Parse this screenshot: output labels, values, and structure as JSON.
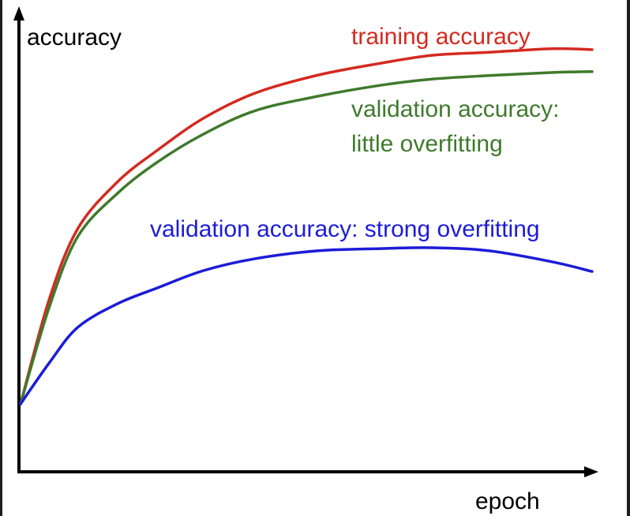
{
  "chart_data": {
    "type": "line",
    "title": "",
    "xlabel": "epoch",
    "ylabel": "accuracy",
    "xlim": [
      0,
      1
    ],
    "ylim": [
      0,
      1
    ],
    "grid": false,
    "x": [
      0,
      0.05,
      0.1,
      0.17,
      0.24,
      0.32,
      0.41,
      0.52,
      0.63,
      0.72,
      0.82,
      0.93,
      1.0
    ],
    "series": [
      {
        "name": "training accuracy",
        "color": "#d42a20",
        "values": [
          0.154,
          0.391,
          0.552,
          0.659,
          0.731,
          0.803,
          0.86,
          0.901,
          0.928,
          0.946,
          0.953,
          0.961,
          0.959
        ]
      },
      {
        "name": "validation accuracy: little overfitting",
        "name_lines": [
          "validation accuracy:",
          "little overfitting"
        ],
        "color": "#3f7a2c",
        "values": [
          0.154,
          0.373,
          0.534,
          0.633,
          0.704,
          0.767,
          0.82,
          0.853,
          0.878,
          0.892,
          0.9,
          0.907,
          0.909
        ]
      },
      {
        "name": "validation accuracy: strong overfitting",
        "color": "#1c1cd8",
        "values": [
          0.154,
          0.247,
          0.328,
          0.382,
          0.418,
          0.457,
          0.484,
          0.502,
          0.507,
          0.509,
          0.502,
          0.477,
          0.455
        ]
      }
    ]
  }
}
